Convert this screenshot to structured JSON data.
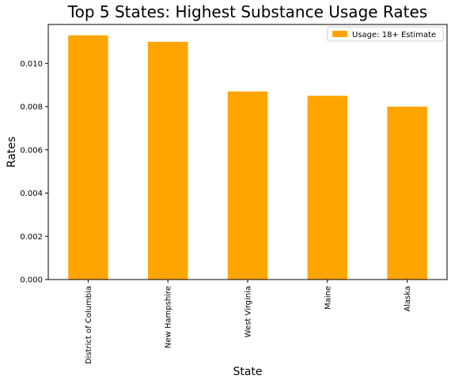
{
  "chart_data": {
    "type": "bar",
    "title": "Top 5 States: Highest Substance Usage Rates",
    "xlabel": "State",
    "ylabel": "Rates",
    "categories": [
      "District of Columbia",
      "New Hampshire",
      "West Virginia",
      "Maine",
      "Alaska"
    ],
    "series": [
      {
        "name": "Usage: 18+ Estimate",
        "values": [
          0.0113,
          0.011,
          0.0087,
          0.0085,
          0.008
        ]
      }
    ],
    "ylim": [
      0,
      0.0118
    ],
    "yticks": [
      0.0,
      0.002,
      0.004,
      0.006,
      0.008,
      0.01
    ],
    "ytick_labels": [
      "0.000",
      "0.002",
      "0.004",
      "0.006",
      "0.008",
      "0.010"
    ],
    "grid": false,
    "legend_position": "top-right",
    "bar_color": "#ffa500"
  }
}
